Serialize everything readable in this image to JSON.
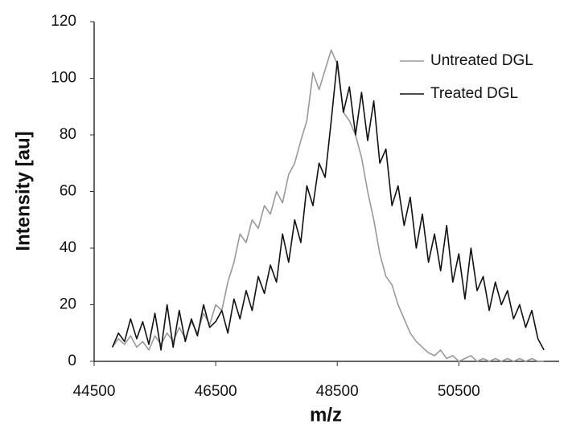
{
  "chart_data": {
    "type": "line",
    "x_label": "m/z",
    "y_label": "Intensity [au]",
    "x": [
      44800,
      44900,
      45000,
      45100,
      45200,
      45300,
      45400,
      45500,
      45600,
      45700,
      45800,
      45900,
      46000,
      46100,
      46200,
      46300,
      46400,
      46500,
      46600,
      46700,
      46800,
      46900,
      47000,
      47100,
      47200,
      47300,
      47400,
      47500,
      47600,
      47700,
      47800,
      47900,
      48000,
      48100,
      48200,
      48300,
      48400,
      48500,
      48600,
      48700,
      48800,
      48900,
      49000,
      49100,
      49200,
      49300,
      49400,
      49500,
      49600,
      49700,
      49800,
      49900,
      50000,
      50100,
      50200,
      50300,
      50400,
      50500,
      50600,
      50700,
      50800,
      50900,
      51000,
      51100,
      51200,
      51300,
      51400,
      51500,
      51600,
      51700,
      51800,
      51900
    ],
    "series": [
      {
        "name": "Untreated DGL",
        "color": "#999999",
        "values": [
          5,
          8,
          6,
          9,
          5,
          7,
          4,
          9,
          6,
          10,
          7,
          12,
          8,
          14,
          10,
          17,
          13,
          20,
          18,
          28,
          35,
          45,
          42,
          50,
          47,
          55,
          52,
          60,
          56,
          66,
          70,
          78,
          85,
          102,
          96,
          103,
          110,
          105,
          88,
          85,
          80,
          72,
          60,
          50,
          38,
          30,
          27,
          20,
          15,
          10,
          7,
          5,
          3,
          2,
          4,
          1,
          2,
          0,
          1,
          2,
          0,
          1,
          0,
          1,
          0,
          1,
          0,
          1,
          0,
          1,
          0,
          0
        ]
      },
      {
        "name": "Treated DGL",
        "color": "#111111",
        "values": [
          5,
          10,
          7,
          15,
          8,
          14,
          6,
          17,
          4,
          20,
          5,
          18,
          7,
          15,
          9,
          20,
          12,
          14,
          18,
          10,
          22,
          15,
          25,
          18,
          30,
          24,
          34,
          28,
          45,
          35,
          50,
          42,
          62,
          55,
          70,
          65,
          85,
          106,
          88,
          97,
          80,
          95,
          78,
          92,
          70,
          75,
          55,
          62,
          48,
          58,
          40,
          52,
          35,
          45,
          32,
          48,
          28,
          38,
          22,
          40,
          25,
          30,
          18,
          28,
          20,
          25,
          15,
          20,
          12,
          18,
          8,
          4
        ]
      }
    ],
    "xlim": [
      44500,
      52150
    ],
    "xticks": [
      44500,
      46500,
      48500,
      50500
    ],
    "ylim": [
      0,
      120
    ],
    "yticks": [
      0,
      20,
      40,
      60,
      80,
      100,
      120
    ],
    "legend": "upper-right"
  }
}
